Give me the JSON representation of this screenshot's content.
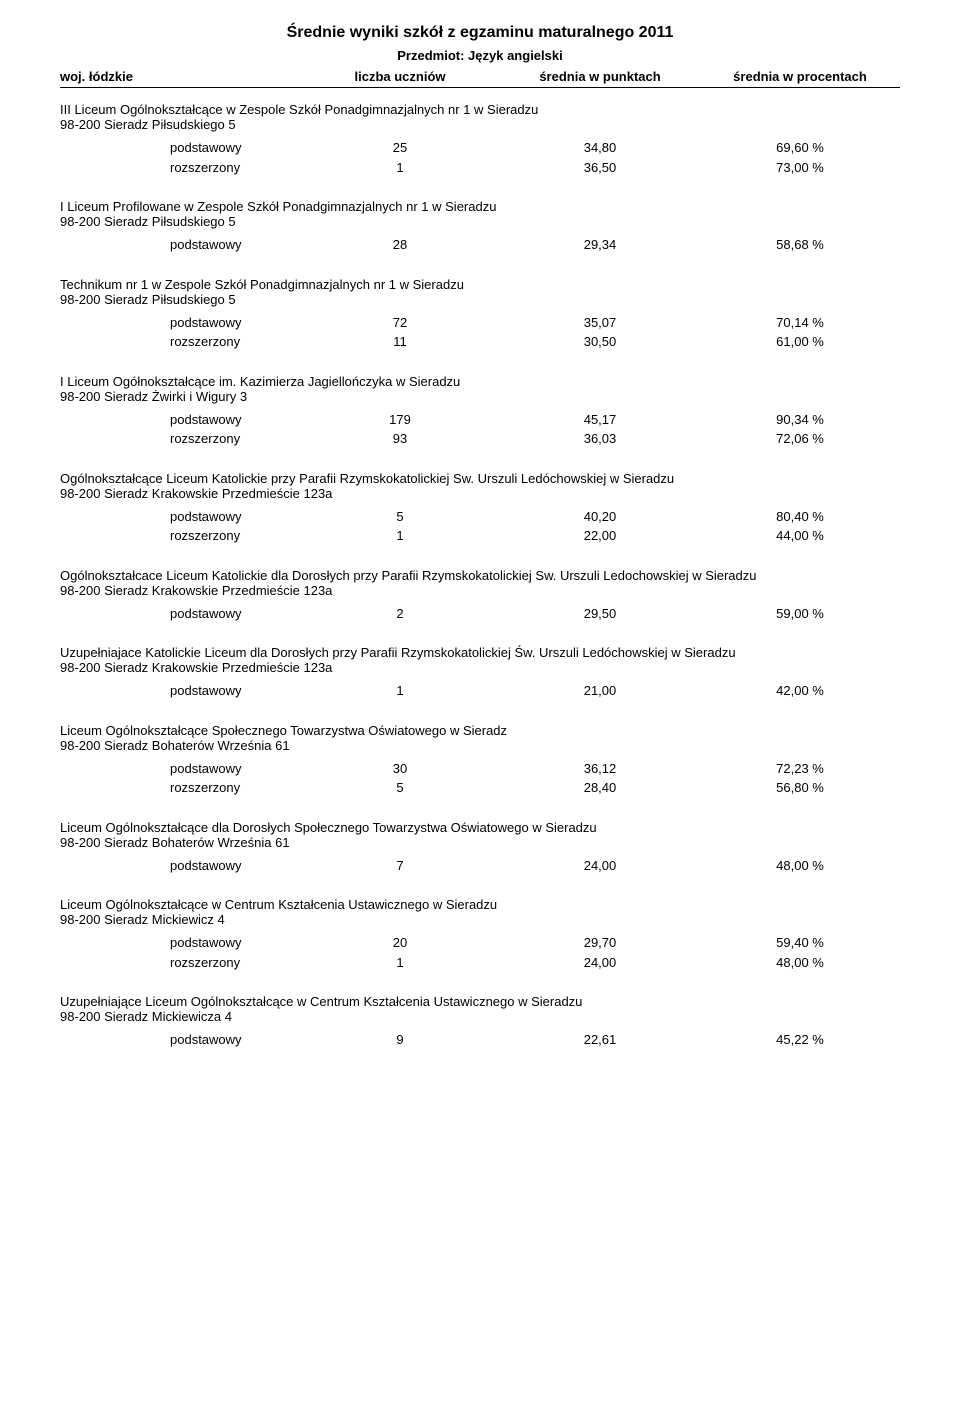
{
  "title": "Średnie wyniki szkół z egzaminu maturalnego 2011",
  "subject": "Przedmiot: Język angielski",
  "region_label": "woj. łódzkie",
  "column_headers": {
    "count": "liczba uczniów",
    "points": "średnia w punktach",
    "percent": "średnia w procentach"
  },
  "level_labels": {
    "basic": "podstawowy",
    "extended": "rozszerzony"
  },
  "schools": [
    {
      "name": "III Liceum Ogólnokształcące w Zespole Szkół Ponadgimnazjalnych nr 1 w Sieradzu",
      "addr": "98-200 Sieradz Piłsudskiego 5",
      "rows": [
        {
          "level": "basic",
          "count": "25",
          "points": "34,80",
          "percent": "69,60 %"
        },
        {
          "level": "extended",
          "count": "1",
          "points": "36,50",
          "percent": "73,00 %"
        }
      ]
    },
    {
      "name": "I Liceum Profilowane w Zespole Szkół Ponadgimnazjalnych nr 1 w Sieradzu",
      "addr": "98-200 Sieradz Piłsudskiego 5",
      "rows": [
        {
          "level": "basic",
          "count": "28",
          "points": "29,34",
          "percent": "58,68 %"
        }
      ]
    },
    {
      "name": "Technikum nr 1 w Zespole Szkół Ponadgimnazjalnych nr 1 w Sieradzu",
      "addr": "98-200 Sieradz Piłsudskiego 5",
      "rows": [
        {
          "level": "basic",
          "count": "72",
          "points": "35,07",
          "percent": "70,14 %"
        },
        {
          "level": "extended",
          "count": "11",
          "points": "30,50",
          "percent": "61,00 %"
        }
      ]
    },
    {
      "name": "I Liceum Ogółnokształcące im. Kazimierza Jagiellończyka w Sieradzu",
      "addr": "98-200 Sieradz Żwirki i Wigury 3",
      "rows": [
        {
          "level": "basic",
          "count": "179",
          "points": "45,17",
          "percent": "90,34 %"
        },
        {
          "level": "extended",
          "count": "93",
          "points": "36,03",
          "percent": "72,06 %"
        }
      ]
    },
    {
      "name": "Ogólnokształcące Liceum Katolickie przy Parafii Rzymskokatolickiej Sw. Urszuli Ledóchowskiej w Sieradzu",
      "addr": "98-200 Sieradz Krakowskie Przedmieście 123a",
      "rows": [
        {
          "level": "basic",
          "count": "5",
          "points": "40,20",
          "percent": "80,40 %"
        },
        {
          "level": "extended",
          "count": "1",
          "points": "22,00",
          "percent": "44,00 %"
        }
      ]
    },
    {
      "name": "Ogólnokształcace Liceum Katolickie dla Dorosłych przy Parafii Rzymskokatolickiej Sw. Urszuli Ledochowskiej w Sieradzu",
      "addr": "98-200 Sieradz Krakowskie Przedmieście 123a",
      "rows": [
        {
          "level": "basic",
          "count": "2",
          "points": "29,50",
          "percent": "59,00 %"
        }
      ]
    },
    {
      "name": "Uzupełniajace Katolickie Liceum dla Dorosłych przy Parafii Rzymskokatolickiej Św. Urszuli Ledóchowskiej  w Sieradzu",
      "addr": "98-200 Sieradz Krakowskie Przedmieście 123a",
      "rows": [
        {
          "level": "basic",
          "count": "1",
          "points": "21,00",
          "percent": "42,00 %"
        }
      ]
    },
    {
      "name": "Liceum Ogólnokształcące Społecznego Towarzystwa Oświatowego w Sieradz",
      "addr": "98-200 Sieradz Bohaterów Września 61",
      "rows": [
        {
          "level": "basic",
          "count": "30",
          "points": "36,12",
          "percent": "72,23 %"
        },
        {
          "level": "extended",
          "count": "5",
          "points": "28,40",
          "percent": "56,80 %"
        }
      ]
    },
    {
      "name": "Liceum Ogólnokształcące dla Dorosłych Społecznego Towarzystwa Oświatowego w Sieradzu",
      "addr": "98-200 Sieradz Bohaterów Września 61",
      "rows": [
        {
          "level": "basic",
          "count": "7",
          "points": "24,00",
          "percent": "48,00 %"
        }
      ]
    },
    {
      "name": "Liceum Ogólnokształcące w Centrum Kształcenia Ustawicznego w Sieradzu",
      "addr": "98-200 Sieradz Mickiewicz 4",
      "rows": [
        {
          "level": "basic",
          "count": "20",
          "points": "29,70",
          "percent": "59,40 %"
        },
        {
          "level": "extended",
          "count": "1",
          "points": "24,00",
          "percent": "48,00 %"
        }
      ]
    },
    {
      "name": "Uzupełniające Liceum Ogólnokształcące  w Centrum Kształcenia Ustawicznego       w Sieradzu",
      "addr": "98-200 Sieradz Mickiewicza 4",
      "rows": [
        {
          "level": "basic",
          "count": "9",
          "points": "22,61",
          "percent": "45,22 %"
        }
      ]
    }
  ]
}
